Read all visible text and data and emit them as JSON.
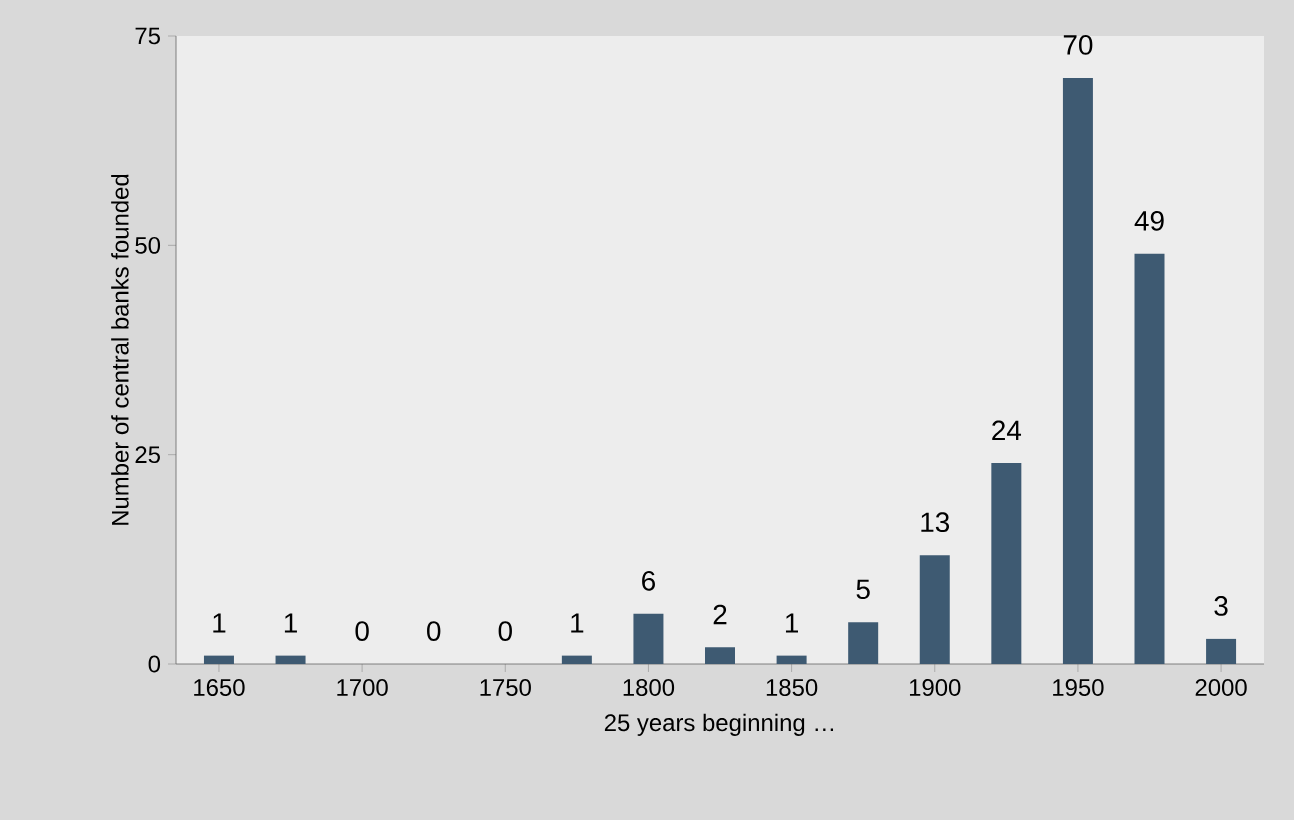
{
  "chart_data": {
    "type": "bar",
    "xlabel": "25 years beginning …",
    "ylabel": "Number of central banks founded",
    "categories": [
      "1650",
      null,
      "1700",
      null,
      "1750",
      null,
      "1800",
      null,
      "1850",
      null,
      "1900",
      null,
      "1950",
      null,
      "2000"
    ],
    "values": [
      1,
      1,
      0,
      0,
      0,
      1,
      6,
      2,
      1,
      5,
      13,
      24,
      70,
      49,
      3
    ],
    "color": "#3e5a72",
    "ylim": [
      0,
      75
    ],
    "yticks": [
      0,
      25,
      50,
      75
    ],
    "data_labels": true
  }
}
